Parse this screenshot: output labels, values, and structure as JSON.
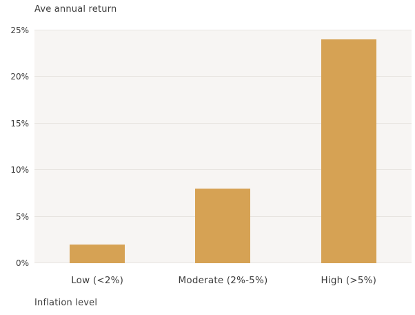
{
  "chart_data": {
    "type": "bar",
    "title": "Ave annual return",
    "xlabel": "Inflation level",
    "ylabel": "Ave annual return",
    "categories": [
      "Low (<2%)",
      "Moderate (2%-5%)",
      "High (>5%)"
    ],
    "values": [
      2,
      8,
      24
    ],
    "ylim": [
      0,
      25
    ],
    "yticks": [
      {
        "value": 0,
        "label": "0%"
      },
      {
        "value": 5,
        "label": "5%"
      },
      {
        "value": 10,
        "label": "10%"
      },
      {
        "value": 15,
        "label": "15%"
      },
      {
        "value": 20,
        "label": "20%"
      },
      {
        "value": 25,
        "label": "25%"
      }
    ],
    "grid": true,
    "legend_position": "none",
    "bar_color": "#d6a254",
    "plot_background": "#f7f5f3",
    "gridline_color": "#e7e4e0",
    "text_color": "#3c3c3c"
  }
}
